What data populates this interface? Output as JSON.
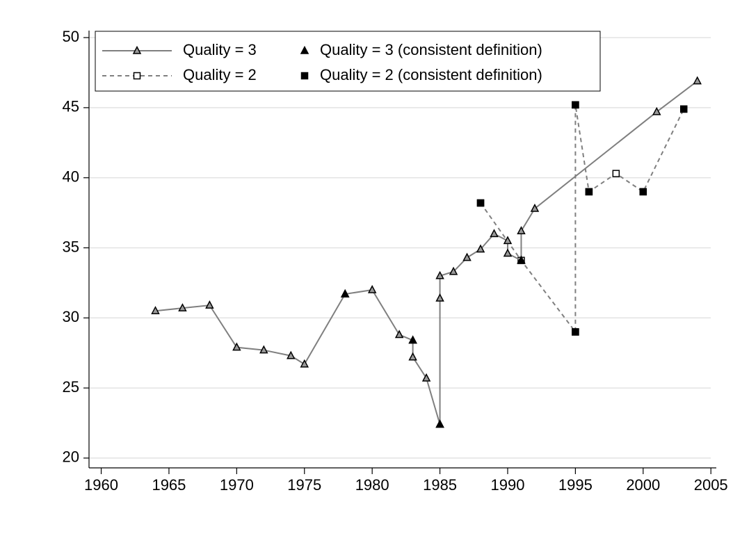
{
  "chart_data": {
    "type": "line",
    "xlim": [
      1959.1,
      2005.4
    ],
    "ylim": [
      19.3,
      50.5
    ],
    "xticks": [
      1960,
      1965,
      1970,
      1975,
      1980,
      1985,
      1990,
      1995,
      2000,
      2005
    ],
    "yticks": [
      20,
      25,
      30,
      35,
      40,
      45,
      50
    ],
    "grid": true,
    "legend": "top-left",
    "series": [
      {
        "name": "Quality = 2",
        "color": "#7f7f7f",
        "line": true,
        "dash": true,
        "marker": "square",
        "filled": false,
        "x": [
          1988,
          1991,
          1995,
          1995,
          1996,
          1998,
          2000,
          2003
        ],
        "values": [
          38.2,
          34.1,
          29.0,
          45.2,
          39.0,
          40.3,
          39.0,
          44.9
        ]
      },
      {
        "name": "Quality = 2 (consistent definition)",
        "color": "#000000",
        "line": false,
        "dash": false,
        "marker": "square",
        "filled": true,
        "x": [
          1988,
          1995,
          1995,
          1996,
          2000,
          2003
        ],
        "values": [
          38.2,
          29.0,
          45.2,
          39.0,
          39.0,
          44.9
        ]
      },
      {
        "name": "Quality = 3",
        "color": "#7f7f7f",
        "line": true,
        "dash": false,
        "marker": "triangle",
        "filled": false,
        "x": [
          1964,
          1966,
          1968,
          1970,
          1972,
          1974,
          1975,
          1978,
          1980,
          1982,
          1983,
          1983,
          1984,
          1985,
          1985,
          1985,
          1986,
          1987,
          1988,
          1989,
          1990,
          1990,
          1991,
          1991,
          1992,
          2001,
          2004
        ],
        "values": [
          30.5,
          30.7,
          30.9,
          27.9,
          27.7,
          27.3,
          26.7,
          31.7,
          32.0,
          28.8,
          28.4,
          27.2,
          25.7,
          22.4,
          31.4,
          33.0,
          33.3,
          34.3,
          34.9,
          36.0,
          35.5,
          34.6,
          34.1,
          36.2,
          37.8,
          44.7,
          46.9
        ]
      },
      {
        "name": "Quality = 3 (consistent definition)",
        "color": "#000000",
        "line": false,
        "dash": false,
        "marker": "triangle",
        "filled": true,
        "x": [
          1978,
          1983,
          1985,
          1991
        ],
        "values": [
          31.7,
          28.4,
          22.4,
          34.1
        ]
      }
    ]
  }
}
